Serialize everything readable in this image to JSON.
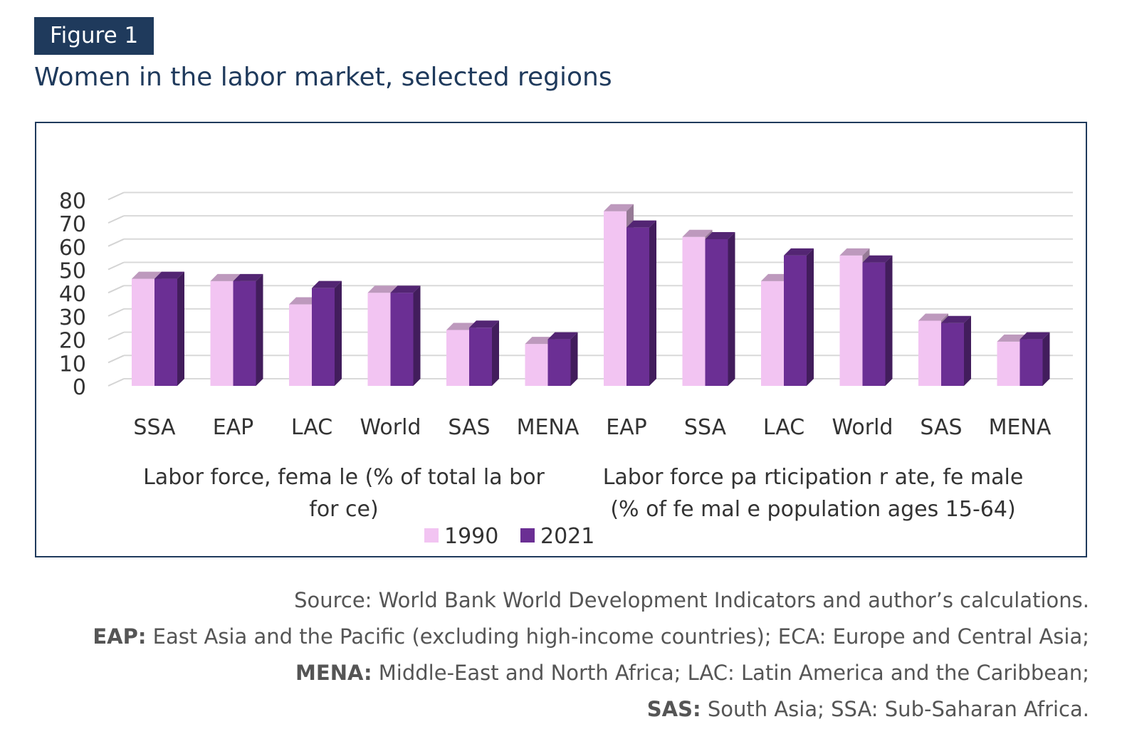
{
  "figure_label": "Figure 1",
  "title": "Women in the labor market, selected regions",
  "chart_data": {
    "type": "bar",
    "ylim": [
      0,
      80
    ],
    "yticks": [
      "0",
      "10",
      "20",
      "30",
      "40",
      "50",
      "60",
      "70",
      "80"
    ],
    "grid": true,
    "legend_position": "bottom",
    "categories": [
      "SSA",
      "EAP",
      "LAC",
      "World",
      "SAS",
      "MENA",
      "EAP",
      "SSA",
      "LAC",
      "World",
      "SAS",
      "MENA"
    ],
    "groups": [
      {
        "label_line1": "Labor force, fema le (% of total la bor",
        "label_line2": "for ce)"
      },
      {
        "label_line1": "Labor force pa rticipation r ate, fe male",
        "label_line2": "(% of fe mal e population ages 15-64)"
      }
    ],
    "series": [
      {
        "name": "1990",
        "color": "#f2c4f2",
        "values": [
          46,
          45,
          35,
          40,
          24,
          18,
          75,
          64,
          45,
          56,
          28,
          19
        ]
      },
      {
        "name": "2021",
        "color": "#6b2f94",
        "values": [
          46,
          45,
          42,
          40,
          25,
          20,
          68,
          63,
          56,
          53,
          27,
          20
        ]
      }
    ]
  },
  "notes": {
    "source": "Source: World Bank World Development Indicators and author’s calculations.",
    "line2_key": "EAP:",
    "line2_text": " East Asia and the Pacific (excluding high-income countries); ECA: Europe and Central Asia;",
    "line3_key": "MENA:",
    "line3_text": " Middle-East and North Africa; LAC: Latin America and the Caribbean;",
    "line4_key": "SAS:",
    "line4_text": " South Asia; SSA: Sub-Saharan Africa."
  }
}
